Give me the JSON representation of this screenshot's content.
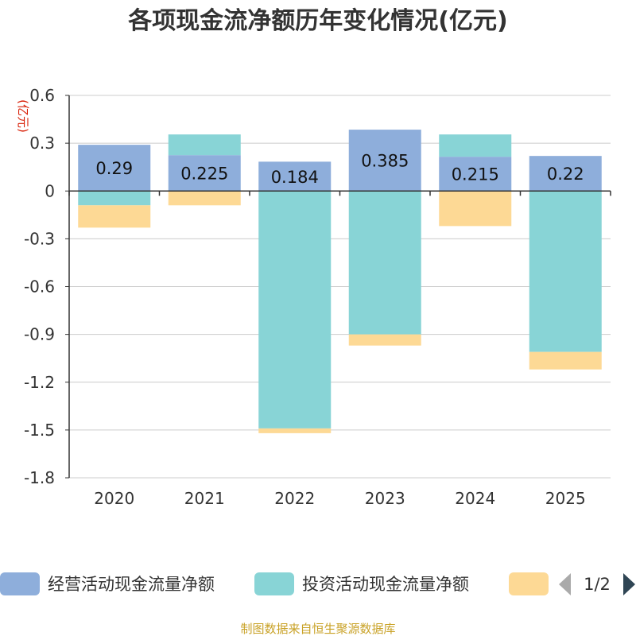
{
  "chart_data": {
    "type": "bar",
    "stacked": true,
    "title": "各项现金流净额历年变化情况(亿元)",
    "ylabel": "(亿元)",
    "xlabel": "",
    "ylim": [
      -1.8,
      0.6
    ],
    "yticks": [
      0.6,
      0.3,
      0,
      -0.3,
      -0.6,
      -0.9,
      -1.2,
      -1.5,
      -1.8
    ],
    "ytick_labels": [
      "0.6",
      "0.3",
      "0",
      "-0.3",
      "-0.6",
      "-0.9",
      "-1.2",
      "-1.5",
      "-1.8"
    ],
    "grid": true,
    "categories": [
      "2020",
      "2021",
      "2022",
      "2023",
      "2024",
      "2025"
    ],
    "series": [
      {
        "name": "经营活动现金流量净额",
        "color": "#8eaedb",
        "values": [
          0.29,
          0.225,
          0.184,
          0.385,
          0.215,
          0.22
        ],
        "labels": [
          "0.29",
          "0.225",
          "0.184",
          "0.385",
          "0.215",
          "0.22"
        ]
      },
      {
        "name": "投资活动现金流量净额",
        "color": "#88d4d6",
        "values": [
          -0.09,
          0.13,
          -1.49,
          -0.9,
          0.14,
          -1.01
        ]
      },
      {
        "name": "",
        "color": "#fdd995",
        "values": [
          -0.14,
          -0.09,
          -0.03,
          -0.07,
          -0.22,
          -0.11
        ]
      }
    ],
    "legend_position": "bottom"
  },
  "legend": {
    "page_label": "1/2",
    "prev_icon": "triangle-left-icon",
    "next_icon": "triangle-right-icon"
  },
  "source": "制图数据来自恒生聚源数据库",
  "colors": {
    "axis": "#333333",
    "grid": "#cccccc",
    "pager_disabled": "#aaaaaa",
    "pager_active": "#2f4554",
    "unit": "#d81e06",
    "source": "#c9a227"
  }
}
